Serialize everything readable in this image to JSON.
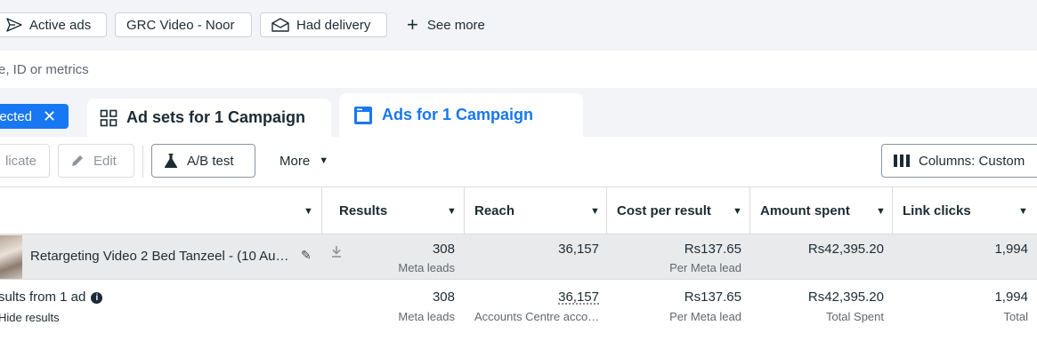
{
  "filters": {
    "chips": [
      {
        "label": "Active ads",
        "icon": "send-icon"
      },
      {
        "label": "GRC Video - Noor",
        "icon": ""
      },
      {
        "label": "Had delivery",
        "icon": "envelope-icon"
      }
    ],
    "see_more": "See more"
  },
  "search": {
    "placeholder": "e, ID or metrics"
  },
  "tabs": {
    "selected_pill": "lected",
    "adsets": "Ad sets for 1 Campaign",
    "ads": "Ads for 1 Campaign"
  },
  "toolbar": {
    "duplicate": "licate",
    "edit": "Edit",
    "ab_test": "A/B test",
    "more": "More",
    "columns": "Columns: Custom"
  },
  "table": {
    "headers": [
      "Results",
      "Reach",
      "Cost per result",
      "Amount spent",
      "Link clicks"
    ],
    "ad_row": {
      "name": "Retargeting Video 2 Bed Tanzeel - (10 Au…",
      "results": "308",
      "results_sub": "Meta leads",
      "reach": "36,157",
      "cost": "Rs137.65",
      "cost_sub": "Per Meta lead",
      "spent": "Rs42,395.20",
      "clicks": "1,994"
    },
    "summary_row": {
      "title": "sults from 1 ad",
      "hide": "Hide results",
      "results": "308",
      "results_sub": "Meta leads",
      "reach": "36,157",
      "reach_sub": "Accounts Centre acco…",
      "cost": "Rs137.65",
      "cost_sub": "Per Meta lead",
      "spent": "Rs42,395.20",
      "spent_sub": "Total Spent",
      "clicks": "1,994",
      "clicks_sub": "Total"
    }
  },
  "colors": {
    "accent": "#1877f2",
    "page_bg": "#f2f4f7",
    "row_highlight": "#e9eaec"
  }
}
